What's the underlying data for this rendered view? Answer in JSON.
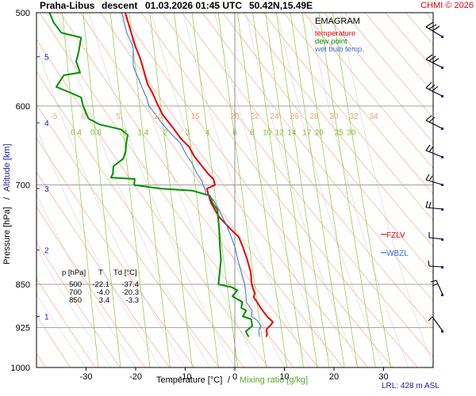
{
  "header": {
    "station": "Praha-Libus",
    "mode": "descent",
    "datetime": "01.03.2026 01:45 UTC",
    "coords": "50.42N,15.49E",
    "copyright": "CHMI © 2026"
  },
  "legend": {
    "title": "EMAGRAM",
    "temperature": "temperature",
    "dew_point": "dew point",
    "wet_bulb": "wet bulb temp."
  },
  "table": {
    "headers": [
      "p [hPa]",
      "T",
      "Td [°C]"
    ],
    "rows": [
      [
        "500",
        "-22.1",
        "-37.4"
      ],
      [
        "700",
        "-4.0",
        "-20.3"
      ],
      [
        "850",
        "3.4",
        "-3.3"
      ]
    ]
  },
  "axes": {
    "ylabel_left": "Pressure [hPa]",
    "ylabel_sep": "/",
    "ylabel_right": "Altitude [km]",
    "xlabel_temp": "Temperature [°C]",
    "xlabel_sep": "/",
    "xlabel_mix": "Mixing ratio [g/kg]",
    "lrl": "LRL: 428 m ASL",
    "fzlv": "FZLV",
    "wbzl": "WBZL"
  },
  "colors": {
    "temperature": "#e8000c",
    "dew_point": "#009000",
    "wet_bulb": "#3b6fd4",
    "dry_adiabat": "#f2b08a",
    "mixing_line": "#8cc83c",
    "isobar": "#a0a0a0",
    "altitude": "#1a1aa8"
  },
  "chart_data": {
    "type": "line",
    "x_range": [
      -40,
      40
    ],
    "p_range": [
      500,
      1000
    ],
    "x_ticks": [
      "-30",
      "-20",
      "-10",
      "0",
      "10",
      "20",
      "30"
    ],
    "x_tick_values": [
      -30,
      -20,
      -10,
      0,
      10,
      20,
      30
    ],
    "p_ticks": [
      "500",
      "600",
      "700",
      "850",
      "925",
      "1000"
    ],
    "p_tick_values": [
      500,
      600,
      700,
      850,
      925,
      1000
    ],
    "altitude_ticks": [
      "1",
      "2",
      "3",
      "4",
      "5"
    ],
    "altitude_pressures": [
      905,
      795,
      705,
      620,
      545
    ],
    "dry_adiabat_labels": [
      "-5",
      "0",
      "5",
      "10",
      "15",
      "20",
      "22",
      "24",
      "26",
      "28",
      "30",
      "32",
      "34"
    ],
    "dry_adiabat_label_t": [
      -36.5,
      -30.5,
      -23.5,
      -15.5,
      -8,
      0,
      4,
      8,
      12,
      16,
      20,
      24,
      28
    ],
    "dry_adiabat_label_p": 615,
    "mixing_labels": [
      "0.4",
      "0.6",
      "1",
      "1.4",
      "2",
      "3",
      "4",
      "6",
      "8",
      "10",
      "12",
      "14",
      "17",
      "20",
      "25",
      "30"
    ],
    "mixing_label_t": [
      -32,
      -28,
      -22,
      -18.5,
      -14,
      -9.5,
      -5.5,
      0,
      3.5,
      6.5,
      9,
      11.5,
      14.5,
      17,
      21,
      23.5
    ],
    "mixing_label_p": 635,
    "series": [
      {
        "name": "temperature",
        "points": [
          [
            -22.1,
            500
          ],
          [
            -21.2,
            515
          ],
          [
            -20,
            535
          ],
          [
            -19.2,
            545
          ],
          [
            -18.6,
            555
          ],
          [
            -17.6,
            575
          ],
          [
            -16.6,
            585
          ],
          [
            -15.6,
            598
          ],
          [
            -14.6,
            610
          ],
          [
            -12.6,
            625
          ],
          [
            -10.8,
            640
          ],
          [
            -9.2,
            650
          ],
          [
            -8.2,
            662
          ],
          [
            -6.6,
            675
          ],
          [
            -5.4,
            685
          ],
          [
            -4.3,
            692
          ],
          [
            -4,
            700
          ],
          [
            -5.6,
            705
          ],
          [
            -5.4,
            712
          ],
          [
            -4.8,
            725
          ],
          [
            -3.2,
            745
          ],
          [
            -0.6,
            765
          ],
          [
            0.8,
            775
          ],
          [
            1.6,
            790
          ],
          [
            2.5,
            810
          ],
          [
            3.2,
            830
          ],
          [
            3.4,
            850
          ],
          [
            4,
            865
          ],
          [
            3.8,
            872
          ],
          [
            4.5,
            880
          ],
          [
            5.2,
            890
          ],
          [
            6.5,
            905
          ],
          [
            7.7,
            915
          ],
          [
            7.3,
            920
          ],
          [
            6.4,
            928
          ],
          [
            6.5,
            938
          ],
          [
            6.3,
            942
          ]
        ]
      },
      {
        "name": "dew point",
        "points": [
          [
            -37.4,
            500
          ],
          [
            -36.5,
            510
          ],
          [
            -35,
            520
          ],
          [
            -31,
            525
          ],
          [
            -31.5,
            540
          ],
          [
            -32,
            550
          ],
          [
            -31.2,
            562
          ],
          [
            -34.5,
            565
          ],
          [
            -36,
            578
          ],
          [
            -33,
            585
          ],
          [
            -31,
            590
          ],
          [
            -30.6,
            600
          ],
          [
            -29.5,
            615
          ],
          [
            -27.3,
            622
          ],
          [
            -23,
            628
          ],
          [
            -21.6,
            635
          ],
          [
            -21.9,
            645
          ],
          [
            -22,
            655
          ],
          [
            -22.5,
            665
          ],
          [
            -24.5,
            675
          ],
          [
            -24.6,
            685
          ],
          [
            -25,
            690
          ],
          [
            -20.2,
            692
          ],
          [
            -20.3,
            700
          ],
          [
            -15,
            705
          ],
          [
            -8.5,
            708
          ],
          [
            -5,
            715
          ],
          [
            -4.5,
            725
          ],
          [
            -3.5,
            735
          ],
          [
            -3.2,
            760
          ],
          [
            -3,
            790
          ],
          [
            -2.8,
            810
          ],
          [
            -3.3,
            850
          ],
          [
            -0.5,
            855
          ],
          [
            0.5,
            860
          ],
          [
            -0.5,
            870
          ],
          [
            1.5,
            880
          ],
          [
            1.3,
            890
          ],
          [
            2.3,
            895
          ],
          [
            1.6,
            905
          ],
          [
            3.3,
            910
          ],
          [
            3.5,
            922
          ],
          [
            2.2,
            932
          ],
          [
            2.8,
            942
          ]
        ]
      },
      {
        "name": "wet bulb temp.",
        "points": [
          [
            -22.8,
            500
          ],
          [
            -21.8,
            520
          ],
          [
            -20.5,
            535
          ],
          [
            -20.5,
            555
          ],
          [
            -19,
            575
          ],
          [
            -17.8,
            590
          ],
          [
            -17.3,
            600
          ],
          [
            -16,
            610
          ],
          [
            -14.8,
            620
          ],
          [
            -12.6,
            635
          ],
          [
            -11,
            645
          ],
          [
            -9.8,
            660
          ],
          [
            -8.7,
            670
          ],
          [
            -7.6,
            685
          ],
          [
            -6.6,
            695
          ],
          [
            -6.4,
            700
          ],
          [
            -6,
            705
          ],
          [
            -5.9,
            712
          ],
          [
            -4.4,
            720
          ],
          [
            -3.2,
            735
          ],
          [
            -1.5,
            760
          ],
          [
            0,
            790
          ],
          [
            0.6,
            810
          ],
          [
            1.3,
            830
          ],
          [
            2,
            850
          ],
          [
            2.2,
            865
          ],
          [
            2.3,
            880
          ],
          [
            3.5,
            895
          ],
          [
            3.3,
            905
          ],
          [
            4.5,
            912
          ],
          [
            5.3,
            922
          ],
          [
            4.8,
            930
          ],
          [
            5,
            942
          ]
        ]
      }
    ]
  }
}
